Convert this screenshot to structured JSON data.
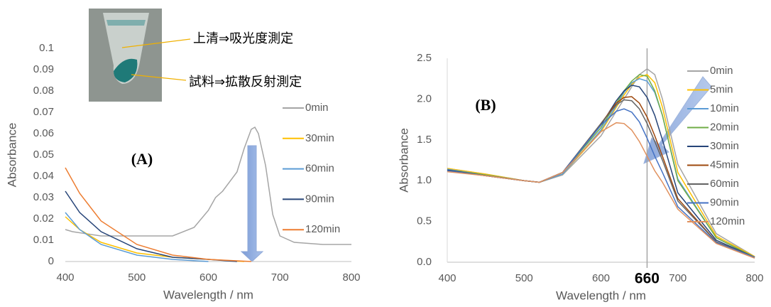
{
  "chart_data": [
    {
      "type": "line",
      "label": "(A)",
      "xlabel": "Wavelength / nm",
      "ylabel": "Absorbance",
      "annotations": [
        "上清⇒吸光度測定",
        "試料⇒拡散反射測定"
      ],
      "xlim": [
        400,
        800
      ],
      "xticks": [
        400,
        500,
        600,
        700,
        800
      ],
      "ylim": [
        0,
        0.1
      ],
      "yticks": [
        0,
        0.01,
        0.02,
        0.03,
        0.04,
        0.05,
        0.06,
        0.07,
        0.08,
        0.09,
        0.1
      ],
      "grid": false,
      "series": [
        {
          "name": "0min",
          "color": "#a5a5a5",
          "x": [
            400,
            410,
            450,
            500,
            550,
            580,
            600,
            610,
            620,
            640,
            650,
            660,
            665,
            670,
            680,
            690,
            700,
            720,
            760,
            800
          ],
          "values": [
            0.015,
            0.014,
            0.012,
            0.012,
            0.012,
            0.016,
            0.024,
            0.03,
            0.033,
            0.042,
            0.053,
            0.062,
            0.063,
            0.06,
            0.045,
            0.022,
            0.012,
            0.009,
            0.008,
            0.008
          ]
        },
        {
          "name": "30min",
          "color": "#ffc000",
          "x": [
            400,
            420,
            450,
            500,
            550,
            600,
            650
          ],
          "values": [
            0.021,
            0.015,
            0.009,
            0.004,
            0.002,
            0.001,
            0
          ]
        },
        {
          "name": "60min",
          "color": "#5b9bd5",
          "x": [
            400,
            420,
            450,
            500,
            550,
            600
          ],
          "values": [
            0.023,
            0.015,
            0.008,
            0.003,
            0.001,
            0
          ]
        },
        {
          "name": "90min",
          "color": "#264478",
          "x": [
            400,
            420,
            450,
            500,
            550,
            600,
            640
          ],
          "values": [
            0.033,
            0.023,
            0.014,
            0.006,
            0.002,
            0.001,
            0
          ]
        },
        {
          "name": "120min",
          "color": "#ed7d31",
          "x": [
            400,
            420,
            450,
            500,
            550,
            600,
            660
          ],
          "values": [
            0.044,
            0.032,
            0.019,
            0.008,
            0.003,
            0.001,
            0
          ]
        }
      ]
    },
    {
      "type": "line",
      "label": "(B)",
      "xlabel": "Wavelength  / nm",
      "ylabel": "Absorbance",
      "vline": 660,
      "xlim": [
        400,
        800
      ],
      "xticks": [
        400,
        500,
        600,
        700,
        800
      ],
      "ylim": [
        0,
        2.5
      ],
      "yticks": [
        {
          "value": 0,
          "label": "0.0"
        },
        0.5,
        {
          "value": 1,
          "label": "1.0"
        },
        1.5,
        {
          "value": 2,
          "label": "2.0"
        },
        2.5
      ],
      "grid": false,
      "x": [
        400,
        450,
        500,
        520,
        550,
        600,
        620,
        630,
        640,
        650,
        660,
        670,
        680,
        700,
        750,
        800
      ],
      "series": [
        {
          "name": "0min",
          "color": "#a5a5a5",
          "values": [
            1.15,
            1.08,
            1.0,
            0.98,
            1.07,
            1.55,
            1.85,
            2.0,
            2.15,
            2.3,
            2.37,
            2.3,
            2.0,
            1.2,
            0.35,
            0.07
          ]
        },
        {
          "name": "5min",
          "color": "#ffc000",
          "values": [
            1.15,
            1.08,
            1.0,
            0.98,
            1.08,
            1.6,
            1.9,
            2.05,
            2.18,
            2.27,
            2.3,
            2.2,
            1.9,
            1.1,
            0.32,
            0.07
          ]
        },
        {
          "name": "10min",
          "color": "#5b9bd5",
          "values": [
            1.14,
            1.07,
            1.0,
            0.98,
            1.08,
            1.62,
            1.92,
            2.08,
            2.2,
            2.25,
            2.22,
            2.08,
            1.8,
            1.02,
            0.3,
            0.06
          ]
        },
        {
          "name": "20min",
          "color": "#70ad47",
          "values": [
            1.13,
            1.07,
            1.0,
            0.98,
            1.1,
            1.65,
            1.95,
            2.1,
            2.22,
            2.3,
            2.28,
            2.1,
            1.8,
            1.0,
            0.3,
            0.06
          ]
        },
        {
          "name": "30min",
          "color": "#264478",
          "values": [
            1.13,
            1.06,
            1.0,
            0.98,
            1.1,
            1.68,
            1.98,
            2.1,
            2.17,
            2.15,
            2.02,
            1.8,
            1.5,
            0.85,
            0.27,
            0.06
          ]
        },
        {
          "name": "45min",
          "color": "#9e480e",
          "values": [
            1.12,
            1.06,
            1.0,
            0.98,
            1.1,
            1.7,
            1.95,
            2.02,
            2.03,
            1.95,
            1.78,
            1.55,
            1.3,
            0.78,
            0.25,
            0.06
          ]
        },
        {
          "name": "60min",
          "color": "#636363",
          "values": [
            1.12,
            1.06,
            1.0,
            0.98,
            1.1,
            1.7,
            1.93,
            1.99,
            1.98,
            1.88,
            1.7,
            1.48,
            1.25,
            0.75,
            0.25,
            0.06
          ]
        },
        {
          "name": "90min",
          "color": "#4472c4",
          "values": [
            1.12,
            1.06,
            1.0,
            0.98,
            1.1,
            1.68,
            1.85,
            1.88,
            1.84,
            1.72,
            1.52,
            1.3,
            1.1,
            0.68,
            0.24,
            0.06
          ]
        },
        {
          "name": "120min",
          "color": "#e0915e",
          "values": [
            1.11,
            1.06,
            1.0,
            0.98,
            1.1,
            1.6,
            1.71,
            1.7,
            1.62,
            1.48,
            1.3,
            1.12,
            0.98,
            0.65,
            0.23,
            0.05
          ]
        }
      ]
    }
  ]
}
